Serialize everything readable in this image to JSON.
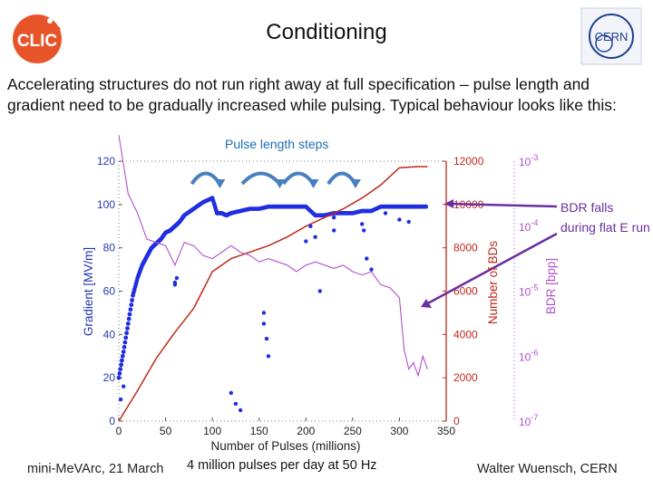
{
  "slide": {
    "title": "Conditioning",
    "intro": "Accelerating structures do not run right away at full specification – pulse length and gradient need to be gradually increased while pulsing. Typical behaviour looks like this:",
    "pulse_label": "Pulse length steps",
    "callout": "BDR falls during flat E run",
    "footer_left": "mini-MeVArc, 21 March",
    "footer_middle": "4 million pulses per day at 50 Hz",
    "footer_right": "Walter Wuensch, CERN",
    "logo_clic": "CLIC",
    "logo_cern": "CERN"
  },
  "colors": {
    "gradient": "#1f2ee0",
    "breakdowns": "#c0281c",
    "bdr": "#b34fd0",
    "arrow": "#4a7fc0",
    "callout": "#6a2fa0",
    "clic_orange": "#e8542a"
  },
  "chart_data": {
    "type": "scatter",
    "xlabel": "Number of Pulses (millions)",
    "xlim": [
      0,
      350
    ],
    "xticks": [
      "0",
      "50",
      "100",
      "150",
      "200",
      "250",
      "300",
      "350"
    ],
    "left_axis": {
      "label": "Gradient [MV/m]",
      "lim": [
        0,
        120
      ],
      "ticks": [
        "0",
        "20",
        "40",
        "60",
        "80",
        "100",
        "120"
      ]
    },
    "right_axis_1": {
      "label": "Number of BDs",
      "lim": [
        0,
        12000
      ],
      "ticks": [
        "0",
        "2000",
        "4000",
        "6000",
        "8000",
        "10000",
        "12000"
      ]
    },
    "right_axis_2": {
      "label": "BDR [bpp]",
      "log": true,
      "lim_exp": [
        -7,
        -3
      ],
      "ticks": [
        {
          "base": "10",
          "exp": "-7"
        },
        {
          "base": "10",
          "exp": "-6"
        },
        {
          "base": "10",
          "exp": "-5"
        },
        {
          "base": "10",
          "exp": "-4"
        },
        {
          "base": "10",
          "exp": "-3"
        }
      ]
    },
    "series": [
      {
        "name": "Gradient",
        "axis": "left",
        "style": "dots",
        "x": [
          0,
          5,
          10,
          15,
          20,
          25,
          30,
          35,
          40,
          45,
          50,
          55,
          60,
          65,
          70,
          80,
          90,
          100,
          105,
          110,
          115,
          120,
          130,
          140,
          150,
          160,
          170,
          180,
          190,
          200,
          210,
          220,
          230,
          240,
          250,
          260,
          270,
          280,
          290,
          300,
          310,
          320,
          330
        ],
        "y": [
          20,
          32,
          45,
          58,
          66,
          72,
          76,
          80,
          82,
          84,
          87,
          88,
          90,
          92,
          95,
          98,
          101,
          103,
          96,
          96,
          95,
          96,
          97,
          98,
          98,
          99,
          99,
          99,
          99,
          99,
          95,
          95,
          96,
          96,
          96,
          97,
          97,
          99,
          99,
          99,
          99,
          99,
          99
        ]
      },
      {
        "name": "Number of BDs",
        "axis": "right1",
        "style": "line",
        "x": [
          0,
          20,
          40,
          60,
          80,
          100,
          120,
          140,
          160,
          180,
          200,
          220,
          240,
          260,
          280,
          300,
          320,
          330
        ],
        "y": [
          0,
          1400,
          2900,
          4100,
          5200,
          6900,
          7500,
          7800,
          8100,
          8500,
          9000,
          9400,
          9800,
          10300,
          10900,
          11700,
          11750,
          11750
        ]
      },
      {
        "name": "BDR",
        "axis": "right2",
        "style": "line",
        "x": [
          0,
          10,
          20,
          30,
          40,
          50,
          60,
          70,
          80,
          90,
          100,
          110,
          120,
          130,
          140,
          150,
          160,
          170,
          180,
          190,
          200,
          210,
          220,
          230,
          240,
          250,
          260,
          270,
          280,
          290,
          300,
          305,
          310,
          315,
          320,
          325,
          330
        ],
        "y": [
          -2.6,
          -3.5,
          -3.8,
          -4.2,
          -4.25,
          -4.3,
          -4.6,
          -4.25,
          -4.3,
          -4.45,
          -4.5,
          -4.4,
          -4.3,
          -4.4,
          -4.45,
          -4.55,
          -4.5,
          -4.55,
          -4.6,
          -4.7,
          -4.6,
          -4.55,
          -4.6,
          -4.65,
          -4.6,
          -4.7,
          -4.75,
          -4.7,
          -4.9,
          -4.95,
          -5.1,
          -5.9,
          -6.2,
          -6.1,
          -6.3,
          -6.0,
          -6.2
        ]
      },
      {
        "name": "Gradient outliers",
        "axis": "left",
        "style": "points",
        "x": [
          2,
          5,
          60,
          60,
          62,
          120,
          125,
          130,
          155,
          155,
          158,
          160,
          200,
          205,
          210,
          215,
          230,
          230,
          260,
          262,
          265,
          270,
          285,
          300,
          310
        ],
        "y": [
          10,
          16,
          64,
          63,
          66,
          13,
          8,
          5,
          50,
          45,
          38,
          30,
          83,
          90,
          85,
          60,
          88,
          94,
          91,
          88,
          75,
          70,
          96,
          93,
          92
        ]
      }
    ],
    "arrows_between_x": [
      [
        78,
        108
      ],
      [
        132,
        172
      ],
      [
        176,
        208
      ],
      [
        224,
        253
      ]
    ]
  }
}
